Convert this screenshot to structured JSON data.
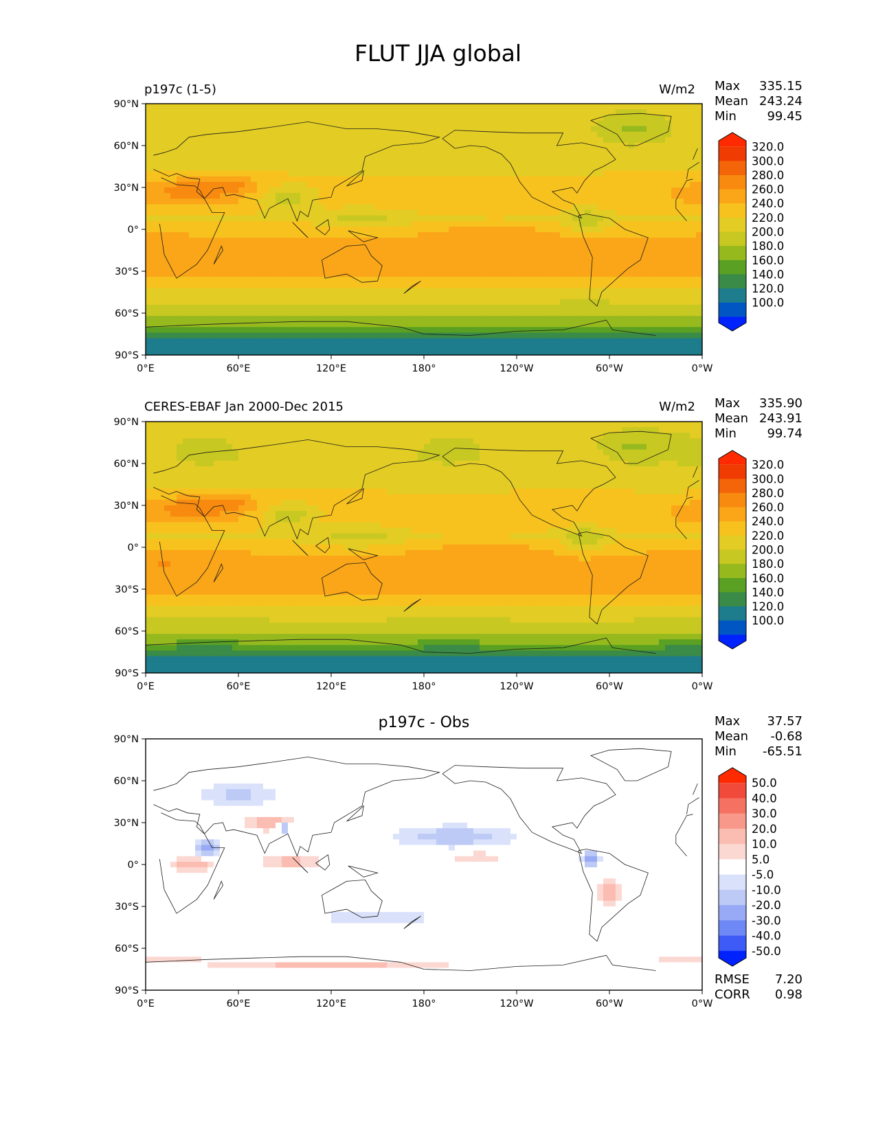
{
  "figure_title": "FLUT JJA global",
  "colors": {
    "full": [
      "#0022ff",
      "#0057c4",
      "#1d7d8c",
      "#3a8a48",
      "#5aa022",
      "#96ba1e",
      "#c8c822",
      "#e3cc24",
      "#f8c21e",
      "#faa618",
      "#f88a10",
      "#f46408",
      "#f03c02",
      "#ff2a00"
    ],
    "diff": [
      "#0022ff",
      "#3e5bf7",
      "#6e88f5",
      "#98aaf5",
      "#bccaf5",
      "#dae2fb",
      "#ffffff",
      "#fcd8d2",
      "#fbbcb2",
      "#f8988a",
      "#f57262",
      "#f24a3a",
      "#ff2a00"
    ]
  },
  "chart_data": [
    {
      "type": "heatmap",
      "title": "p197c (1-5)",
      "units": "W/m2",
      "x_ticks": [
        "0°E",
        "60°E",
        "120°E",
        "180°",
        "120°W",
        "60°W",
        "0°W"
      ],
      "y_ticks": [
        "90°N",
        "60°N",
        "30°N",
        "0°",
        "30°S",
        "60°S",
        "90°S"
      ],
      "xlim": [
        0,
        360
      ],
      "ylim": [
        -90,
        90
      ],
      "stats": [
        {
          "label": "Max",
          "value": "335.15"
        },
        {
          "label": "Mean",
          "value": "243.24"
        },
        {
          "label": "Min",
          "value": "99.45"
        }
      ],
      "colorbar_levels": [
        "320.0",
        "300.0",
        "280.0",
        "260.0",
        "240.0",
        "220.0",
        "200.0",
        "180.0",
        "160.0",
        "140.0",
        "120.0",
        "100.0"
      ],
      "colorbar_extend": "both"
    },
    {
      "type": "heatmap",
      "title": "CERES-EBAF Jan 2000-Dec 2015",
      "units": "W/m2",
      "x_ticks": [
        "0°E",
        "60°E",
        "120°E",
        "180°",
        "120°W",
        "60°W",
        "0°W"
      ],
      "y_ticks": [
        "90°N",
        "60°N",
        "30°N",
        "0°",
        "30°S",
        "60°S",
        "90°S"
      ],
      "xlim": [
        0,
        360
      ],
      "ylim": [
        -90,
        90
      ],
      "stats": [
        {
          "label": "Max",
          "value": "335.90"
        },
        {
          "label": "Mean",
          "value": "243.91"
        },
        {
          "label": "Min",
          "value": "99.74"
        }
      ],
      "colorbar_levels": [
        "320.0",
        "300.0",
        "280.0",
        "260.0",
        "240.0",
        "220.0",
        "200.0",
        "180.0",
        "160.0",
        "140.0",
        "120.0",
        "100.0"
      ],
      "colorbar_extend": "both"
    },
    {
      "type": "heatmap",
      "title": "p197c - Obs",
      "x_ticks": [
        "0°E",
        "60°E",
        "120°E",
        "180°",
        "120°W",
        "60°W",
        "0°W"
      ],
      "y_ticks": [
        "90°N",
        "60°N",
        "30°N",
        "0°",
        "30°S",
        "60°S",
        "90°S"
      ],
      "xlim": [
        0,
        360
      ],
      "ylim": [
        -90,
        90
      ],
      "stats": [
        {
          "label": "Max",
          "value": "37.57"
        },
        {
          "label": "Mean",
          "value": "-0.68"
        },
        {
          "label": "Min",
          "value": "-65.51"
        }
      ],
      "colorbar_levels": [
        "50.0",
        "40.0",
        "30.0",
        "20.0",
        "10.0",
        "5.0",
        "-5.0",
        "-10.0",
        "-20.0",
        "-30.0",
        "-40.0",
        "-50.0"
      ],
      "colorbar_extend": "both",
      "extra_stats": [
        {
          "label": "RMSE",
          "value": "7.20"
        },
        {
          "label": "CORR",
          "value": "0.98"
        }
      ]
    }
  ]
}
